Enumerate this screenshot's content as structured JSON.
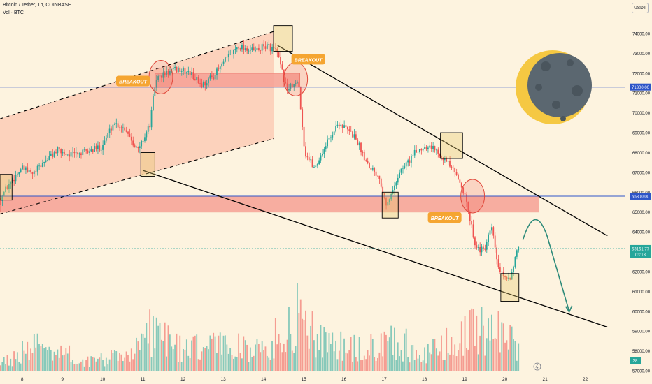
{
  "header": {
    "symbol_line": "Bitcoin / Tether, 1h, COINBASE",
    "volume_line": "Vol · BTC",
    "currency_button": "USDT"
  },
  "colors": {
    "background": "#fdf3df",
    "bull": "#26a69a",
    "bear": "#ef5350",
    "zone_fill": "#f7a196",
    "channel_fill": "#fbc7b0",
    "blue_line": "#2e55c8",
    "breakout_label": "#f5a531",
    "highlight_box": "#e5c86b",
    "projection": "#2e8b7a"
  },
  "chart_data": {
    "type": "candlestick",
    "x_axis_labels": [
      "8",
      "9",
      "10",
      "11",
      "12",
      "13",
      "14",
      "15",
      "16",
      "17",
      "18",
      "19",
      "20",
      "21",
      "22"
    ],
    "y_axis_labels": [
      "74000.00",
      "73000.00",
      "72000.00",
      "71000.00",
      "70000.00",
      "69000.00",
      "68000.00",
      "67000.00",
      "66000.00",
      "65000.00",
      "64000.00",
      "63000.00",
      "62000.00",
      "61000.00",
      "60000.00",
      "59000.00",
      "58000.00",
      "57000.00"
    ],
    "ylim": [
      56800,
      75500
    ],
    "price_path": [
      {
        "x": 7.45,
        "y": 65600
      },
      {
        "x": 7.7,
        "y": 66400
      },
      {
        "x": 8.0,
        "y": 67200
      },
      {
        "x": 8.3,
        "y": 66900
      },
      {
        "x": 8.6,
        "y": 67600
      },
      {
        "x": 8.9,
        "y": 68100
      },
      {
        "x": 9.2,
        "y": 67900
      },
      {
        "x": 9.6,
        "y": 68000
      },
      {
        "x": 10.0,
        "y": 68300
      },
      {
        "x": 10.3,
        "y": 69500
      },
      {
        "x": 10.6,
        "y": 69200
      },
      {
        "x": 10.9,
        "y": 68100
      },
      {
        "x": 11.2,
        "y": 69400
      },
      {
        "x": 11.35,
        "y": 71700
      },
      {
        "x": 11.6,
        "y": 72000
      },
      {
        "x": 11.9,
        "y": 72200
      },
      {
        "x": 12.2,
        "y": 72000
      },
      {
        "x": 12.5,
        "y": 71400
      },
      {
        "x": 12.8,
        "y": 71900
      },
      {
        "x": 13.1,
        "y": 72700
      },
      {
        "x": 13.4,
        "y": 73400
      },
      {
        "x": 13.8,
        "y": 73100
      },
      {
        "x": 14.1,
        "y": 73400
      },
      {
        "x": 14.35,
        "y": 73100
      },
      {
        "x": 14.6,
        "y": 71200
      },
      {
        "x": 14.9,
        "y": 71500
      },
      {
        "x": 15.05,
        "y": 68000
      },
      {
        "x": 15.3,
        "y": 67200
      },
      {
        "x": 15.6,
        "y": 68500
      },
      {
        "x": 15.9,
        "y": 69500
      },
      {
        "x": 16.3,
        "y": 68800
      },
      {
        "x": 16.6,
        "y": 67500
      },
      {
        "x": 16.9,
        "y": 66800
      },
      {
        "x": 17.1,
        "y": 65300
      },
      {
        "x": 17.4,
        "y": 67000
      },
      {
        "x": 17.8,
        "y": 68000
      },
      {
        "x": 18.1,
        "y": 68400
      },
      {
        "x": 18.4,
        "y": 68000
      },
      {
        "x": 18.7,
        "y": 67200
      },
      {
        "x": 18.95,
        "y": 66400
      },
      {
        "x": 19.1,
        "y": 65200
      },
      {
        "x": 19.3,
        "y": 63300
      },
      {
        "x": 19.5,
        "y": 63000
      },
      {
        "x": 19.7,
        "y": 64200
      },
      {
        "x": 19.85,
        "y": 62300
      },
      {
        "x": 20.0,
        "y": 61600
      },
      {
        "x": 20.15,
        "y": 61700
      },
      {
        "x": 20.35,
        "y": 63100
      }
    ],
    "volume_profile": [
      {
        "x": 7.45,
        "v": 0.1
      },
      {
        "x": 8.5,
        "v": 0.35
      },
      {
        "x": 9.5,
        "v": 0.12
      },
      {
        "x": 10.5,
        "v": 0.18
      },
      {
        "x": 11.3,
        "v": 0.55
      },
      {
        "x": 12.0,
        "v": 0.25
      },
      {
        "x": 13.0,
        "v": 0.35
      },
      {
        "x": 14.0,
        "v": 0.25
      },
      {
        "x": 14.9,
        "v": 0.75
      },
      {
        "x": 15.5,
        "v": 0.35
      },
      {
        "x": 16.5,
        "v": 0.25
      },
      {
        "x": 17.1,
        "v": 0.45
      },
      {
        "x": 18.0,
        "v": 0.2
      },
      {
        "x": 19.0,
        "v": 0.45
      },
      {
        "x": 19.9,
        "v": 0.6
      },
      {
        "x": 20.35,
        "v": 0.25
      }
    ],
    "horizontal_levels": [
      71300,
      65800
    ],
    "level_labels": [
      "71300.00",
      "65800.00"
    ],
    "current_price_label": "63161.77",
    "countdown_label": "03:13",
    "resistance_zones": [
      {
        "x0": 11.3,
        "x1": 14.9,
        "y0": 71300,
        "y1": 72000
      },
      {
        "x0": 7.45,
        "x1": 20.85,
        "y0": 65000,
        "y1": 65800
      }
    ],
    "ascending_channel": {
      "x0": 7.45,
      "x1": 14.25,
      "upper": [
        69700,
        74100
      ],
      "lower": [
        64900,
        68700
      ]
    },
    "trendlines": [
      {
        "x0": 14.35,
        "y0": 73400,
        "x1": 22.55,
        "y1": 63800
      },
      {
        "x0": 11.0,
        "y0": 67100,
        "x1": 22.55,
        "y1": 59200
      }
    ],
    "highlight_boxes": [
      {
        "x0": 7.45,
        "y0": 65600,
        "x1": 7.75,
        "y1": 66900
      },
      {
        "x0": 10.95,
        "y0": 66800,
        "x1": 11.3,
        "y1": 68000
      },
      {
        "x0": 14.25,
        "y0": 73100,
        "x1": 14.72,
        "y1": 74400
      },
      {
        "x0": 16.95,
        "y0": 64700,
        "x1": 17.35,
        "y1": 66000
      },
      {
        "x0": 18.4,
        "y0": 67700,
        "x1": 18.95,
        "y1": 69000
      },
      {
        "x0": 19.9,
        "y0": 60500,
        "x1": 20.35,
        "y1": 61900
      }
    ],
    "breakout_circles": [
      {
        "x": 11.45,
        "y": 71800
      },
      {
        "x": 14.8,
        "y": 71700
      },
      {
        "x": 19.2,
        "y": 65800
      }
    ],
    "breakout_labels": [
      "BREAKOUT",
      "BREAKOUT",
      "BREAKOUT"
    ],
    "projection_path": [
      {
        "x": 20.45,
        "y": 63600
      },
      {
        "x": 20.75,
        "y": 64900
      },
      {
        "x": 21.05,
        "y": 63800
      },
      {
        "x": 21.35,
        "y": 61700
      },
      {
        "x": 21.6,
        "y": 60000
      }
    ],
    "scale_badge": "38",
    "grid": false
  }
}
